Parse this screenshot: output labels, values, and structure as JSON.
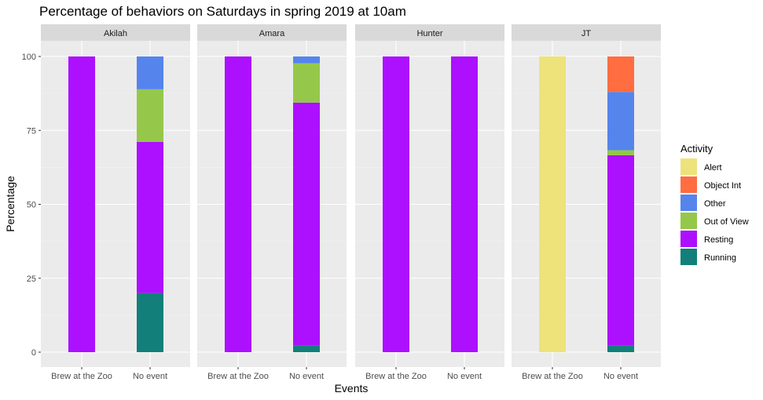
{
  "chart_data": {
    "type": "bar",
    "stacked": true,
    "title": "Percentage of behaviors on Saturdays in spring 2019 at 10am",
    "xlabel": "Events",
    "ylabel": "Percentage",
    "ylim": [
      0,
      100
    ],
    "yticks": [
      0,
      25,
      50,
      75,
      100
    ],
    "grid": true,
    "categories": [
      "Brew at the Zoo",
      "No event"
    ],
    "legend": {
      "title": "Activity",
      "placement": "right",
      "items": [
        {
          "name": "Alert",
          "color": "#EDE37A"
        },
        {
          "name": "Object Int",
          "color": "#FF6D40"
        },
        {
          "name": "Other",
          "color": "#5584EC"
        },
        {
          "name": "Out of View",
          "color": "#95C84A"
        },
        {
          "name": "Resting",
          "color": "#AC10FF"
        },
        {
          "name": "Running",
          "color": "#137F7A"
        }
      ]
    },
    "stack_order_bottom_to_top": [
      "Running",
      "Resting",
      "Out of View",
      "Other",
      "Object Int",
      "Alert"
    ],
    "facets": [
      {
        "name": "Akilah",
        "bars": [
          {
            "category": "Brew at the Zoo",
            "segments": {
              "Resting": 100
            }
          },
          {
            "category": "No event",
            "segments": {
              "Running": 20,
              "Resting": 51.1,
              "Out of View": 17.8,
              "Other": 11.1
            }
          }
        ]
      },
      {
        "name": "Amara",
        "bars": [
          {
            "category": "Brew at the Zoo",
            "segments": {
              "Resting": 100
            }
          },
          {
            "category": "No event",
            "segments": {
              "Running": 2.2,
              "Resting": 82.2,
              "Out of View": 13.3,
              "Other": 2.3
            }
          }
        ]
      },
      {
        "name": "Hunter",
        "bars": [
          {
            "category": "Brew at the Zoo",
            "segments": {
              "Resting": 100
            }
          },
          {
            "category": "No event",
            "segments": {
              "Resting": 100
            }
          }
        ]
      },
      {
        "name": "JT",
        "bars": [
          {
            "category": "Brew at the Zoo",
            "segments": {
              "Alert": 100
            }
          },
          {
            "category": "No event",
            "segments": {
              "Running": 2.2,
              "Resting": 64.4,
              "Out of View": 1.7,
              "Other": 19.7,
              "Object Int": 12
            }
          }
        ]
      }
    ]
  }
}
